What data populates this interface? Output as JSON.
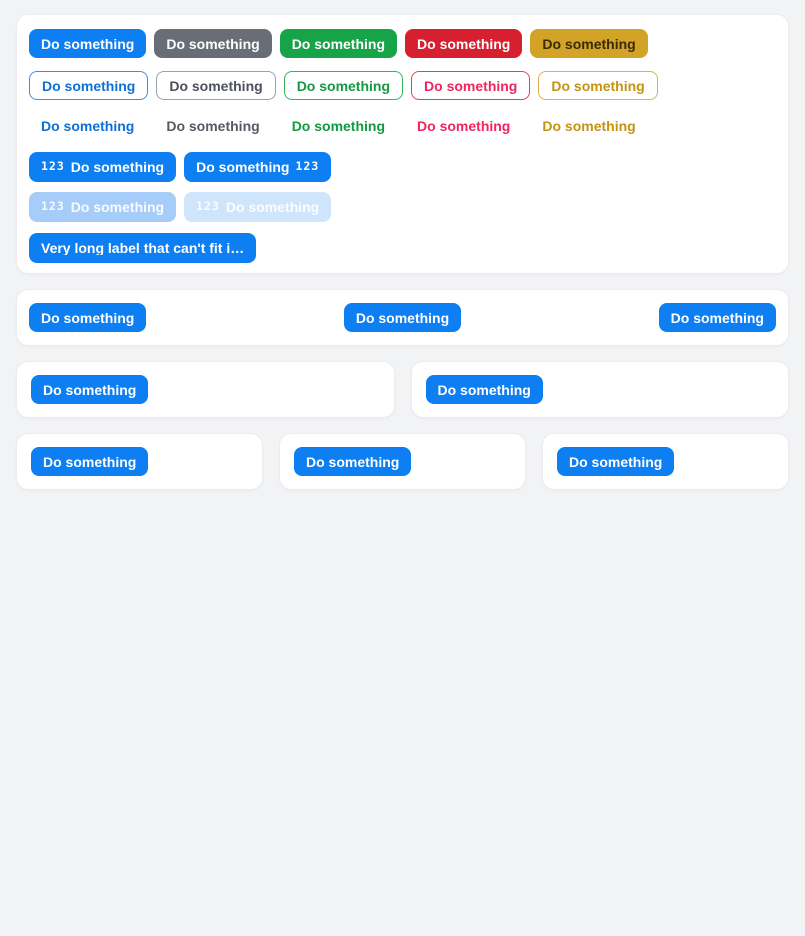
{
  "theme": {
    "page_bg": "#f2f3f5",
    "card_bg": "#ffffff",
    "primary": "#0d7ff2",
    "disabled_primary_strong": "#a6ccfa",
    "disabled_primary_faint": "#cfe5fc"
  },
  "showcase": {
    "solid_buttons": [
      {
        "label": "Do something",
        "bg": "#0d7ff2",
        "fg": "#ffffff"
      },
      {
        "label": "Do something",
        "bg": "#696e76",
        "fg": "#ffffff"
      },
      {
        "label": "Do something",
        "bg": "#17a348",
        "fg": "#ffffff"
      },
      {
        "label": "Do something",
        "bg": "#d6202f",
        "fg": "#ffffff"
      },
      {
        "label": "Do something",
        "bg": "#d2a326",
        "fg": "#382a05"
      }
    ],
    "outline_buttons": [
      {
        "label": "Do something",
        "border": "#3a8ef0",
        "fg": "#0d6fd8"
      },
      {
        "label": "Do something",
        "border": "#9ba1a8",
        "fg": "#4c515a"
      },
      {
        "label": "Do something",
        "border": "#35b45c",
        "fg": "#149942"
      },
      {
        "label": "Do something",
        "border": "#ee3b5d",
        "fg": "#f0255f"
      },
      {
        "label": "Do something",
        "border": "#dcb14e",
        "fg": "#c49312"
      }
    ],
    "text_buttons": [
      {
        "label": "Do something",
        "fg": "#0d6fd8"
      },
      {
        "label": "Do something",
        "fg": "#545a63"
      },
      {
        "label": "Do something",
        "fg": "#149942"
      },
      {
        "label": "Do something",
        "fg": "#f0255f"
      },
      {
        "label": "Do something",
        "fg": "#c49312"
      }
    ],
    "icon_buttons": [
      {
        "label": "Do something",
        "icon": "123",
        "icon_position": "left",
        "bg": "#0d7ff2",
        "fg": "#ffffff"
      },
      {
        "label": "Do something",
        "icon": "123",
        "icon_position": "right",
        "bg": "#0d7ff2",
        "fg": "#ffffff"
      }
    ],
    "disabled_buttons": [
      {
        "label": "Do something",
        "icon": "123",
        "bg": "#a6ccfa",
        "fg": "#ffffff"
      },
      {
        "label": "Do something",
        "icon": "123",
        "bg": "#cfe5fc",
        "fg": "#ffffff"
      }
    ],
    "truncated_button": {
      "label": "Very long label that can't fit i…",
      "bg": "#0d7ff2",
      "fg": "#ffffff"
    }
  },
  "toolbar_section": {
    "left_button": {
      "label": "Do something",
      "bg": "#0d7ff2",
      "fg": "#ffffff"
    },
    "center_button": {
      "label": "Do something",
      "bg": "#0d7ff2",
      "fg": "#ffffff"
    },
    "right_button": {
      "label": "Do something",
      "bg": "#0d7ff2",
      "fg": "#ffffff"
    }
  },
  "two_card_section": {
    "cards": [
      {
        "button_label": "Do something"
      },
      {
        "button_label": "Do something"
      }
    ]
  },
  "three_card_section": {
    "cards": [
      {
        "button_label": "Do something"
      },
      {
        "button_label": "Do something"
      },
      {
        "button_label": "Do something"
      }
    ]
  }
}
